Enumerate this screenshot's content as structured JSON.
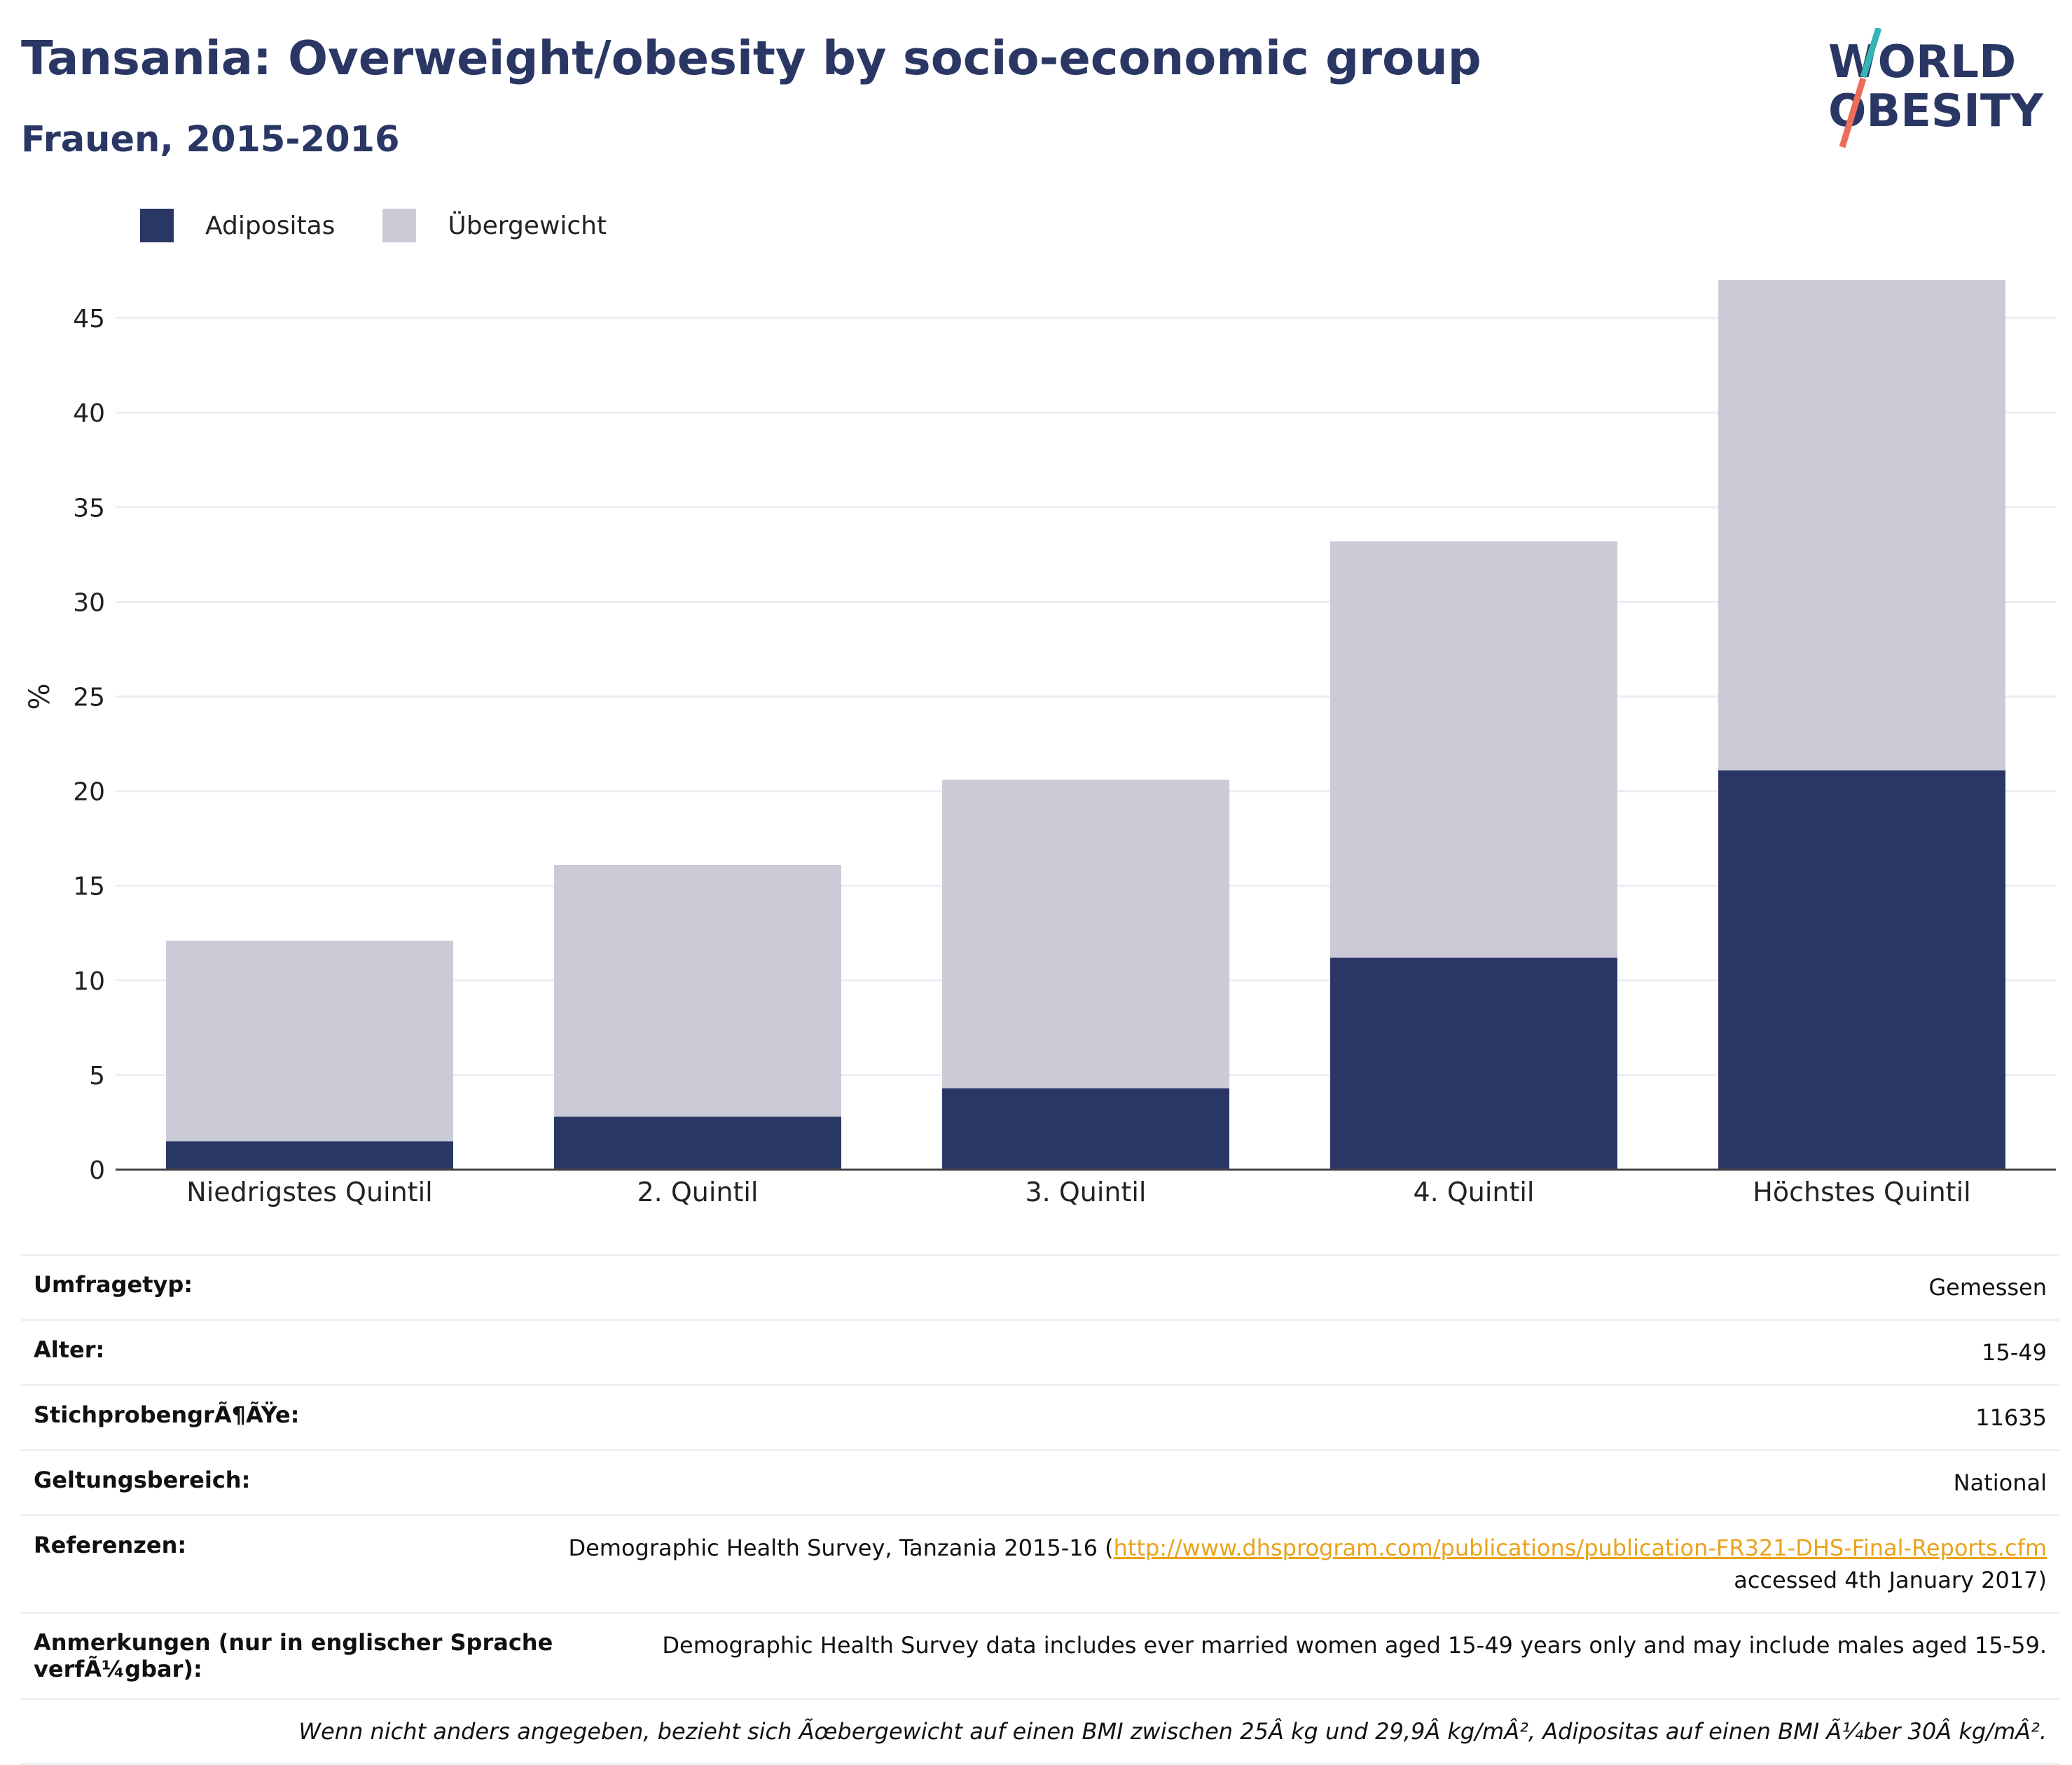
{
  "header": {
    "title": "Tansania: Overweight/obesity by socio-economic group",
    "subtitle": "Frauen, 2015-2016"
  },
  "logo": {
    "line1": "WORLD",
    "line2": "OBESITY"
  },
  "colors": {
    "obesity": "#2a3765",
    "overweight": "#cacbd7",
    "title": "#2a3765",
    "link": "#e9a31b"
  },
  "legend": [
    {
      "label": "Adipositas",
      "color": "#2a3765"
    },
    {
      "label": "Übergewicht",
      "color": "#cacbd7"
    }
  ],
  "chart_data": {
    "type": "bar",
    "stacked": true,
    "categories": [
      "Niedrigstes Quintil",
      "2. Quintil",
      "3. Quintil",
      "4. Quintil",
      "Höchstes Quintil"
    ],
    "series": [
      {
        "name": "Adipositas",
        "values": [
          1.5,
          2.8,
          4.3,
          11.2,
          21.1
        ]
      },
      {
        "name": "Übergewicht",
        "values": [
          10.6,
          13.3,
          16.3,
          22.0,
          25.9
        ]
      }
    ],
    "ylabel": "%",
    "ylim": [
      0,
      47
    ],
    "yticks": [
      0,
      5,
      10,
      15,
      20,
      25,
      30,
      35,
      40,
      45
    ],
    "grid": true,
    "legend_position": "top-left"
  },
  "info": {
    "survey_type_label": "Umfragetyp:",
    "survey_type_value": "Gemessen",
    "age_label": "Alter:",
    "age_value": "15-49",
    "sample_label": "StichprobengrÃ¶ÃŸe:",
    "sample_value": "11635",
    "scope_label": "Geltungsbereich:",
    "scope_value": "National",
    "references_label": "Referenzen:",
    "references_prefix": "Demographic Health Survey, Tanzania 2015-16 (",
    "references_link": "http://www.dhsprogram.com/publications/publication-FR321-DHS-Final-Reports.cfm",
    "references_suffix": "accessed 4th January 2017)",
    "notes_label": "Anmerkungen (nur in englischer Sprache\nverfÃ¼gbar):",
    "notes_value": "Demographic Health Survey data includes ever married women aged 15-49 years only and may include males aged 15-59.",
    "footnote": "Wenn nicht anders angegeben, bezieht sich Ãœbergewicht auf einen BMI zwischen 25Â kg und 29,9Â kg/mÂ², Adipositas auf einen BMI Ã¼ber 30Â kg/mÂ²."
  }
}
